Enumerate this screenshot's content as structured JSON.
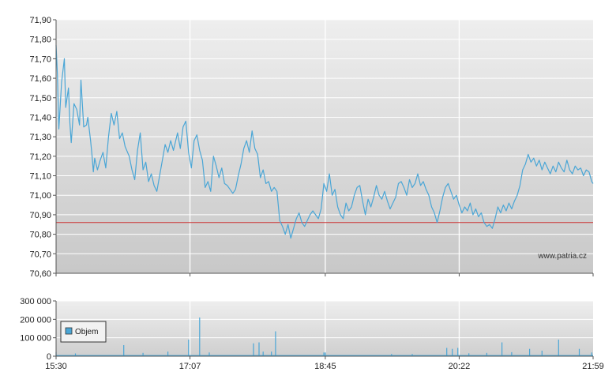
{
  "chart_data": [
    {
      "type": "line",
      "title": "",
      "watermark": "www.patria.cz",
      "x_ticks": [
        "15:30",
        "17:07",
        "18:45",
        "20:22",
        "21:59"
      ],
      "y_ticks": [
        "70,60",
        "70,70",
        "70,80",
        "70,90",
        "71,00",
        "71,10",
        "71,20",
        "71,30",
        "71,40",
        "71,50",
        "71,60",
        "71,70",
        "71,80",
        "71,90"
      ],
      "ylim": [
        70.6,
        71.9
      ],
      "reference_line": 70.86,
      "reference_color": "#cc3333",
      "line_color": "#4aa6d6",
      "grid": true,
      "series": [
        {
          "name": "",
          "points": [
            [
              "15:30",
              71.77
            ],
            [
              "15:31",
              71.62
            ],
            [
              "15:32",
              71.34
            ],
            [
              "15:34",
              71.58
            ],
            [
              "15:36",
              71.7
            ],
            [
              "15:37",
              71.45
            ],
            [
              "15:39",
              71.55
            ],
            [
              "15:40",
              71.37
            ],
            [
              "15:41",
              71.27
            ],
            [
              "15:43",
              71.47
            ],
            [
              "15:45",
              71.44
            ],
            [
              "15:47",
              71.36
            ],
            [
              "15:48",
              71.59
            ],
            [
              "15:50",
              71.35
            ],
            [
              "15:52",
              71.36
            ],
            [
              "15:53",
              71.4
            ],
            [
              "15:55",
              71.28
            ],
            [
              "15:56",
              71.21
            ],
            [
              "15:57",
              71.12
            ],
            [
              "15:58",
              71.19
            ],
            [
              "16:00",
              71.13
            ],
            [
              "16:02",
              71.18
            ],
            [
              "16:04",
              71.22
            ],
            [
              "16:06",
              71.14
            ],
            [
              "16:08",
              71.3
            ],
            [
              "16:10",
              71.42
            ],
            [
              "16:12",
              71.36
            ],
            [
              "16:14",
              71.43
            ],
            [
              "16:16",
              71.29
            ],
            [
              "16:18",
              71.32
            ],
            [
              "16:20",
              71.25
            ],
            [
              "16:23",
              71.2
            ],
            [
              "16:25",
              71.13
            ],
            [
              "16:27",
              71.08
            ],
            [
              "16:29",
              71.23
            ],
            [
              "16:31",
              71.32
            ],
            [
              "16:33",
              71.13
            ],
            [
              "16:35",
              71.17
            ],
            [
              "16:37",
              71.07
            ],
            [
              "16:39",
              71.11
            ],
            [
              "16:41",
              71.05
            ],
            [
              "16:43",
              71.02
            ],
            [
              "16:45",
              71.1
            ],
            [
              "16:47",
              71.18
            ],
            [
              "16:49",
              71.26
            ],
            [
              "16:51",
              71.22
            ],
            [
              "16:53",
              71.28
            ],
            [
              "16:55",
              71.23
            ],
            [
              "16:58",
              71.32
            ],
            [
              "17:00",
              71.24
            ],
            [
              "17:02",
              71.35
            ],
            [
              "17:04",
              71.38
            ],
            [
              "17:06",
              71.22
            ],
            [
              "17:08",
              71.14
            ],
            [
              "17:10",
              71.28
            ],
            [
              "17:12",
              71.31
            ],
            [
              "17:14",
              71.23
            ],
            [
              "17:16",
              71.18
            ],
            [
              "17:18",
              71.04
            ],
            [
              "17:20",
              71.07
            ],
            [
              "17:22",
              71.02
            ],
            [
              "17:24",
              71.2
            ],
            [
              "17:26",
              71.15
            ],
            [
              "17:28",
              71.09
            ],
            [
              "17:30",
              71.14
            ],
            [
              "17:32",
              71.06
            ],
            [
              "17:34",
              71.05
            ],
            [
              "17:36",
              71.03
            ],
            [
              "17:38",
              71.01
            ],
            [
              "17:40",
              71.03
            ],
            [
              "17:42",
              71.1
            ],
            [
              "17:44",
              71.16
            ],
            [
              "17:46",
              71.24
            ],
            [
              "17:48",
              71.28
            ],
            [
              "17:50",
              71.22
            ],
            [
              "17:52",
              71.33
            ],
            [
              "17:54",
              71.24
            ],
            [
              "17:56",
              71.21
            ],
            [
              "17:58",
              71.09
            ],
            [
              "18:00",
              71.13
            ],
            [
              "18:02",
              71.06
            ],
            [
              "18:04",
              71.07
            ],
            [
              "18:06",
              71.02
            ],
            [
              "18:08",
              71.04
            ],
            [
              "18:10",
              71.02
            ],
            [
              "18:12",
              70.87
            ],
            [
              "18:14",
              70.84
            ],
            [
              "18:16",
              70.8
            ],
            [
              "18:18",
              70.85
            ],
            [
              "18:20",
              70.78
            ],
            [
              "18:22",
              70.83
            ],
            [
              "18:24",
              70.88
            ],
            [
              "18:26",
              70.91
            ],
            [
              "18:28",
              70.86
            ],
            [
              "18:30",
              70.84
            ],
            [
              "18:32",
              70.87
            ],
            [
              "18:34",
              70.9
            ],
            [
              "18:36",
              70.92
            ],
            [
              "18:38",
              70.9
            ],
            [
              "18:40",
              70.88
            ],
            [
              "18:42",
              70.93
            ],
            [
              "18:44",
              71.06
            ],
            [
              "18:46",
              71.02
            ],
            [
              "18:48",
              71.11
            ],
            [
              "18:50",
              71.0
            ],
            [
              "18:52",
              71.03
            ],
            [
              "18:54",
              70.94
            ],
            [
              "18:56",
              70.9
            ],
            [
              "18:58",
              70.88
            ],
            [
              "19:00",
              70.96
            ],
            [
              "19:02",
              70.92
            ],
            [
              "19:04",
              70.94
            ],
            [
              "19:06",
              71.0
            ],
            [
              "19:08",
              71.04
            ],
            [
              "19:10",
              71.05
            ],
            [
              "19:12",
              70.97
            ],
            [
              "19:14",
              70.9
            ],
            [
              "19:16",
              70.98
            ],
            [
              "19:18",
              70.94
            ],
            [
              "19:20",
              70.99
            ],
            [
              "19:22",
              71.05
            ],
            [
              "19:24",
              71.0
            ],
            [
              "19:26",
              70.98
            ],
            [
              "19:28",
              71.02
            ],
            [
              "19:30",
              70.97
            ],
            [
              "19:32",
              70.93
            ],
            [
              "19:34",
              70.96
            ],
            [
              "19:36",
              70.99
            ],
            [
              "19:38",
              71.06
            ],
            [
              "19:40",
              71.07
            ],
            [
              "19:42",
              71.04
            ],
            [
              "19:44",
              71.0
            ],
            [
              "19:46",
              71.08
            ],
            [
              "19:48",
              71.04
            ],
            [
              "19:50",
              71.06
            ],
            [
              "19:52",
              71.11
            ],
            [
              "19:54",
              71.05
            ],
            [
              "19:56",
              71.07
            ],
            [
              "19:58",
              71.03
            ],
            [
              "20:00",
              71.0
            ],
            [
              "20:02",
              70.94
            ],
            [
              "20:04",
              70.91
            ],
            [
              "20:06",
              70.86
            ],
            [
              "20:08",
              70.92
            ],
            [
              "20:10",
              70.99
            ],
            [
              "20:12",
              71.04
            ],
            [
              "20:14",
              71.06
            ],
            [
              "20:16",
              71.02
            ],
            [
              "20:18",
              70.98
            ],
            [
              "20:20",
              71.0
            ],
            [
              "20:22",
              70.95
            ],
            [
              "20:24",
              70.91
            ],
            [
              "20:26",
              70.94
            ],
            [
              "20:28",
              70.92
            ],
            [
              "20:30",
              70.96
            ],
            [
              "20:32",
              70.9
            ],
            [
              "20:34",
              70.93
            ],
            [
              "20:36",
              70.89
            ],
            [
              "20:38",
              70.91
            ],
            [
              "20:40",
              70.86
            ],
            [
              "20:42",
              70.84
            ],
            [
              "20:44",
              70.85
            ],
            [
              "20:46",
              70.83
            ],
            [
              "20:48",
              70.88
            ],
            [
              "20:50",
              70.94
            ],
            [
              "20:52",
              70.91
            ],
            [
              "20:54",
              70.95
            ],
            [
              "20:56",
              70.92
            ],
            [
              "20:58",
              70.96
            ],
            [
              "21:00",
              70.93
            ],
            [
              "21:02",
              70.97
            ],
            [
              "21:04",
              71.0
            ],
            [
              "21:06",
              71.05
            ],
            [
              "21:08",
              71.13
            ],
            [
              "21:10",
              71.16
            ],
            [
              "21:12",
              71.21
            ],
            [
              "21:14",
              71.17
            ],
            [
              "21:16",
              71.19
            ],
            [
              "21:18",
              71.15
            ],
            [
              "21:20",
              71.18
            ],
            [
              "21:22",
              71.13
            ],
            [
              "21:24",
              71.17
            ],
            [
              "21:26",
              71.14
            ],
            [
              "21:28",
              71.11
            ],
            [
              "21:30",
              71.15
            ],
            [
              "21:32",
              71.12
            ],
            [
              "21:34",
              71.17
            ],
            [
              "21:36",
              71.14
            ],
            [
              "21:38",
              71.12
            ],
            [
              "21:40",
              71.18
            ],
            [
              "21:42",
              71.13
            ],
            [
              "21:44",
              71.11
            ],
            [
              "21:46",
              71.15
            ],
            [
              "21:48",
              71.13
            ],
            [
              "21:50",
              71.14
            ],
            [
              "21:52",
              71.1
            ],
            [
              "21:54",
              71.13
            ],
            [
              "21:56",
              71.12
            ],
            [
              "21:58",
              71.07
            ],
            [
              "21:59",
              71.06
            ]
          ]
        }
      ]
    },
    {
      "type": "bar",
      "title": "",
      "legend": "Objem",
      "legend_position": "left",
      "x_ticks": [
        "15:30",
        "17:07",
        "18:45",
        "20:22",
        "21:59"
      ],
      "y_ticks": [
        "0",
        "100 000",
        "200 000",
        "300 000"
      ],
      "ylim": [
        0,
        300000
      ],
      "bar_color": "#4aa6d6",
      "grid": true,
      "baseline_volume": 6000,
      "series": [
        {
          "name": "Objem",
          "points": [
            [
              "15:30",
              22000
            ],
            [
              "15:44",
              15000
            ],
            [
              "16:19",
              60000
            ],
            [
              "16:33",
              18000
            ],
            [
              "16:51",
              25000
            ],
            [
              "17:06",
              90000
            ],
            [
              "17:14",
              210000
            ],
            [
              "17:21",
              20000
            ],
            [
              "17:53",
              70000
            ],
            [
              "17:57",
              75000
            ],
            [
              "18:00",
              25000
            ],
            [
              "18:06",
              25000
            ],
            [
              "18:09",
              135000
            ],
            [
              "18:44",
              20000
            ],
            [
              "18:45",
              20000
            ],
            [
              "19:33",
              12000
            ],
            [
              "19:48",
              12000
            ],
            [
              "20:13",
              45000
            ],
            [
              "20:17",
              40000
            ],
            [
              "20:21",
              45000
            ],
            [
              "20:29",
              16000
            ],
            [
              "20:42",
              18000
            ],
            [
              "20:53",
              75000
            ],
            [
              "21:00",
              22000
            ],
            [
              "21:13",
              40000
            ],
            [
              "21:22",
              30000
            ],
            [
              "21:34",
              90000
            ],
            [
              "21:49",
              40000
            ],
            [
              "21:58",
              20000
            ]
          ]
        }
      ]
    }
  ]
}
